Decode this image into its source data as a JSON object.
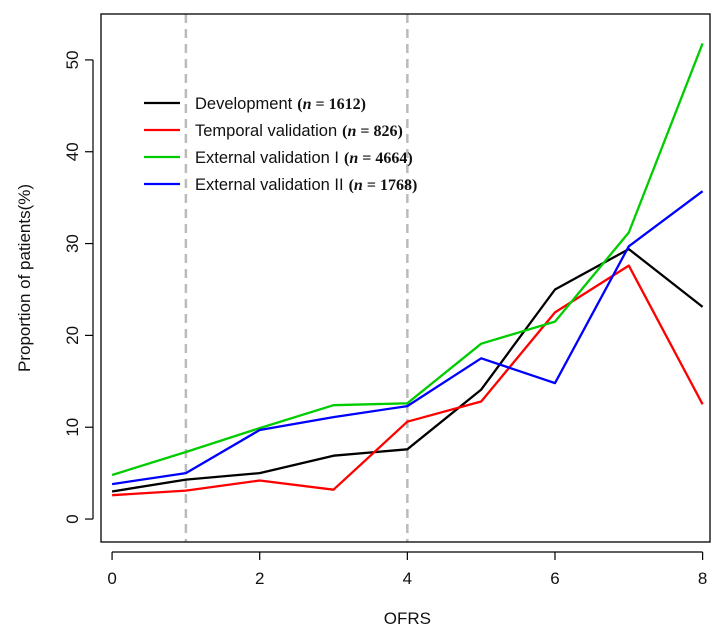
{
  "chart_data": {
    "type": "line",
    "xlabel": "OFRS",
    "ylabel": "Proportion of patients(%)",
    "xlim": [
      -0.15,
      8.1
    ],
    "ylim": [
      -2.5,
      55
    ],
    "x_ticks": [
      "0",
      "2",
      "4",
      "6",
      "8"
    ],
    "y_ticks": [
      "0",
      "10",
      "20",
      "30",
      "40",
      "50"
    ],
    "vertical_reference_lines": [
      1,
      4
    ],
    "x": [
      0,
      1,
      2,
      3,
      4,
      5,
      6,
      7,
      8
    ],
    "legend_position": "top-left",
    "series": [
      {
        "name": "Development",
        "n_label": "= 1612",
        "color": "#000000",
        "values": [
          3.0,
          4.3,
          5.0,
          6.9,
          7.6,
          14.1,
          25.0,
          29.4,
          23.1
        ]
      },
      {
        "name": "Temporal validation",
        "n_label": "= 826",
        "color": "#ff0000",
        "values": [
          2.6,
          3.1,
          4.2,
          3.2,
          10.6,
          12.8,
          22.5,
          27.6,
          12.5
        ]
      },
      {
        "name": "External validation I",
        "n_label": "= 4664",
        "color": "#00cc00",
        "values": [
          4.8,
          7.3,
          9.9,
          12.4,
          12.6,
          19.1,
          21.5,
          31.2,
          51.8
        ]
      },
      {
        "name": "External validation II",
        "n_label": "= 1768",
        "color": "#0000ff",
        "values": [
          3.8,
          5.0,
          9.7,
          11.1,
          12.3,
          17.5,
          14.8,
          29.7,
          35.7
        ]
      }
    ],
    "n_symbol": "n",
    "colors": {
      "reference_line": "#bbbbbb",
      "axes": "#000000"
    }
  }
}
